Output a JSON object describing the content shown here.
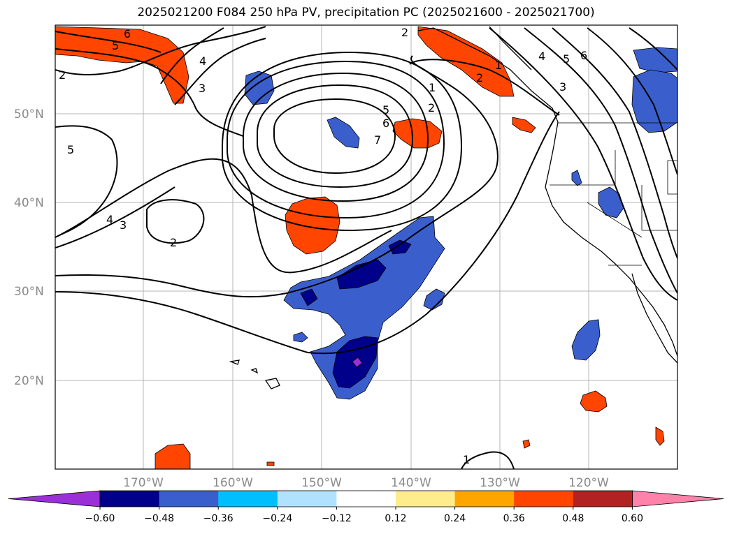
{
  "title": "2025021200 F084 250 hPa PV, precipitation PC (2025021600 - 2025021700)",
  "map": {
    "lat_labels": [
      "50°N",
      "40°N",
      "30°N",
      "20°N"
    ],
    "lon_labels": [
      "170°W",
      "160°W",
      "150°W",
      "140°W",
      "130°W",
      "120°W"
    ],
    "pv_contour_labels": [
      "6",
      "5",
      "4",
      "3",
      "2",
      "5",
      "4",
      "3",
      "2",
      "1",
      "2",
      "5",
      "6",
      "7",
      "2",
      "1",
      "4",
      "5",
      "6",
      "3",
      "1",
      "2"
    ]
  },
  "colorbar": {
    "tick_labels": [
      "−0.60",
      "−0.48",
      "−0.36",
      "−0.24",
      "−0.12",
      "0.12",
      "0.24",
      "0.36",
      "0.48",
      "0.60"
    ],
    "colors": [
      "#9b30d9",
      "#00008b",
      "#3a5fcd",
      "#00bfff",
      "#b0e2ff",
      "#ffffff",
      "#ffec8b",
      "#ffa500",
      "#ff4500",
      "#b22222",
      "#ff82ab"
    ]
  }
}
